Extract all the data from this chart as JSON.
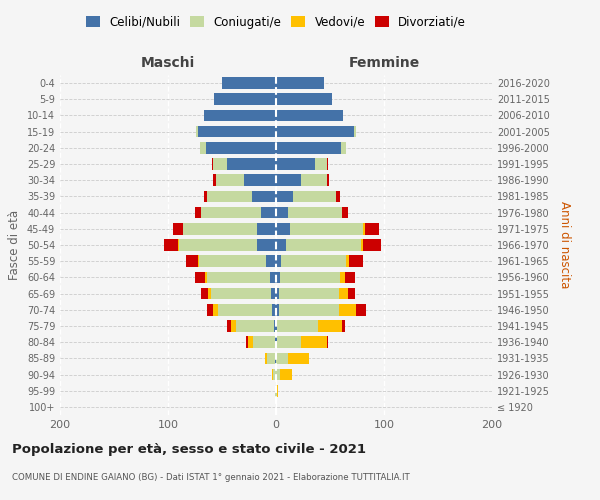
{
  "age_groups": [
    "100+",
    "95-99",
    "90-94",
    "85-89",
    "80-84",
    "75-79",
    "70-74",
    "65-69",
    "60-64",
    "55-59",
    "50-54",
    "45-49",
    "40-44",
    "35-39",
    "30-34",
    "25-29",
    "20-24",
    "15-19",
    "10-14",
    "5-9",
    "0-4"
  ],
  "birth_years": [
    "≤ 1920",
    "1921-1925",
    "1926-1930",
    "1931-1935",
    "1936-1940",
    "1941-1945",
    "1946-1950",
    "1951-1955",
    "1956-1960",
    "1961-1965",
    "1966-1970",
    "1971-1975",
    "1976-1980",
    "1981-1985",
    "1986-1990",
    "1991-1995",
    "1996-2000",
    "2001-2005",
    "2006-2010",
    "2011-2015",
    "2016-2020"
  ],
  "males_celibi": [
    0,
    0,
    0,
    1,
    1,
    2,
    4,
    5,
    6,
    9,
    18,
    18,
    14,
    22,
    30,
    45,
    65,
    72,
    67,
    57,
    50
  ],
  "males_coniugati": [
    0,
    1,
    3,
    7,
    20,
    35,
    50,
    55,
    58,
    62,
    72,
    68,
    55,
    42,
    26,
    13,
    5,
    2,
    0,
    0,
    0
  ],
  "males_vedovi": [
    0,
    0,
    1,
    2,
    5,
    5,
    4,
    3,
    2,
    1,
    1,
    0,
    0,
    0,
    0,
    0,
    0,
    0,
    0,
    0,
    0
  ],
  "males_divorziati": [
    0,
    0,
    0,
    0,
    2,
    3,
    6,
    6,
    9,
    11,
    13,
    9,
    6,
    3,
    2,
    1,
    0,
    0,
    0,
    0,
    0
  ],
  "females_nubili": [
    0,
    0,
    0,
    0,
    1,
    1,
    3,
    3,
    4,
    5,
    9,
    13,
    11,
    16,
    23,
    36,
    60,
    72,
    62,
    52,
    44
  ],
  "females_coniugate": [
    0,
    1,
    4,
    11,
    22,
    38,
    55,
    55,
    55,
    60,
    70,
    68,
    50,
    40,
    24,
    11,
    5,
    2,
    0,
    0,
    0
  ],
  "females_vedove": [
    0,
    1,
    11,
    20,
    24,
    22,
    16,
    9,
    5,
    3,
    2,
    1,
    0,
    0,
    0,
    0,
    0,
    0,
    0,
    0,
    0
  ],
  "females_divorziate": [
    0,
    0,
    0,
    0,
    1,
    3,
    9,
    6,
    9,
    13,
    16,
    13,
    6,
    3,
    2,
    1,
    0,
    0,
    0,
    0,
    0
  ],
  "color_celibi": "#4472a8",
  "color_coniugati": "#c5d9a0",
  "color_vedovi": "#ffc000",
  "color_divorziati": "#cc0000",
  "title": "Popolazione per età, sesso e stato civile - 2021",
  "subtitle": "COMUNE DI ENDINE GAIANO (BG) - Dati ISTAT 1° gennaio 2021 - Elaborazione TUTTITALIA.IT",
  "label_maschi": "Maschi",
  "label_femmine": "Femmine",
  "ylabel_left": "Fasce di età",
  "ylabel_right": "Anni di nascita",
  "xlim": 200,
  "bg_color": "#f5f5f5",
  "legend_labels": [
    "Celibi/Nubili",
    "Coniugati/e",
    "Vedovi/e",
    "Divorziati/e"
  ]
}
